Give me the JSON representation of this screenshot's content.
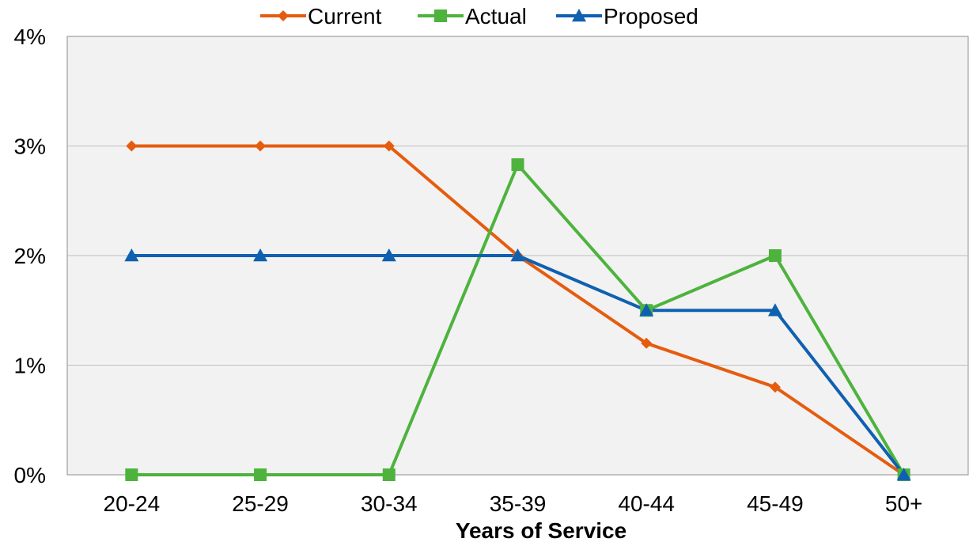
{
  "chart_data": {
    "type": "line",
    "title": "",
    "xlabel": "Years of Service",
    "ylabel": "",
    "categories": [
      "20-24",
      "25-29",
      "30-34",
      "35-39",
      "40-44",
      "45-49",
      "50+"
    ],
    "ylim": [
      0,
      4
    ],
    "yticks": [
      0,
      1,
      2,
      3,
      4
    ],
    "ytick_labels": [
      "0%",
      "1%",
      "2%",
      "3%",
      "4%"
    ],
    "y_unit": "%",
    "grid": "horizontal",
    "legend_position": "top-center",
    "plot_background": "#f2f2f2",
    "series": [
      {
        "name": "Current",
        "color": "#e65c0f",
        "marker": "diamond",
        "values": [
          3,
          3,
          3,
          2,
          1.2,
          0.8,
          0
        ]
      },
      {
        "name": "Actual",
        "color": "#4db33d",
        "marker": "square",
        "values": [
          0,
          0,
          0,
          2.83,
          1.5,
          2,
          0
        ]
      },
      {
        "name": "Proposed",
        "color": "#1060b0",
        "marker": "triangle",
        "values": [
          2,
          2,
          2,
          2,
          1.5,
          1.5,
          0
        ]
      }
    ]
  }
}
